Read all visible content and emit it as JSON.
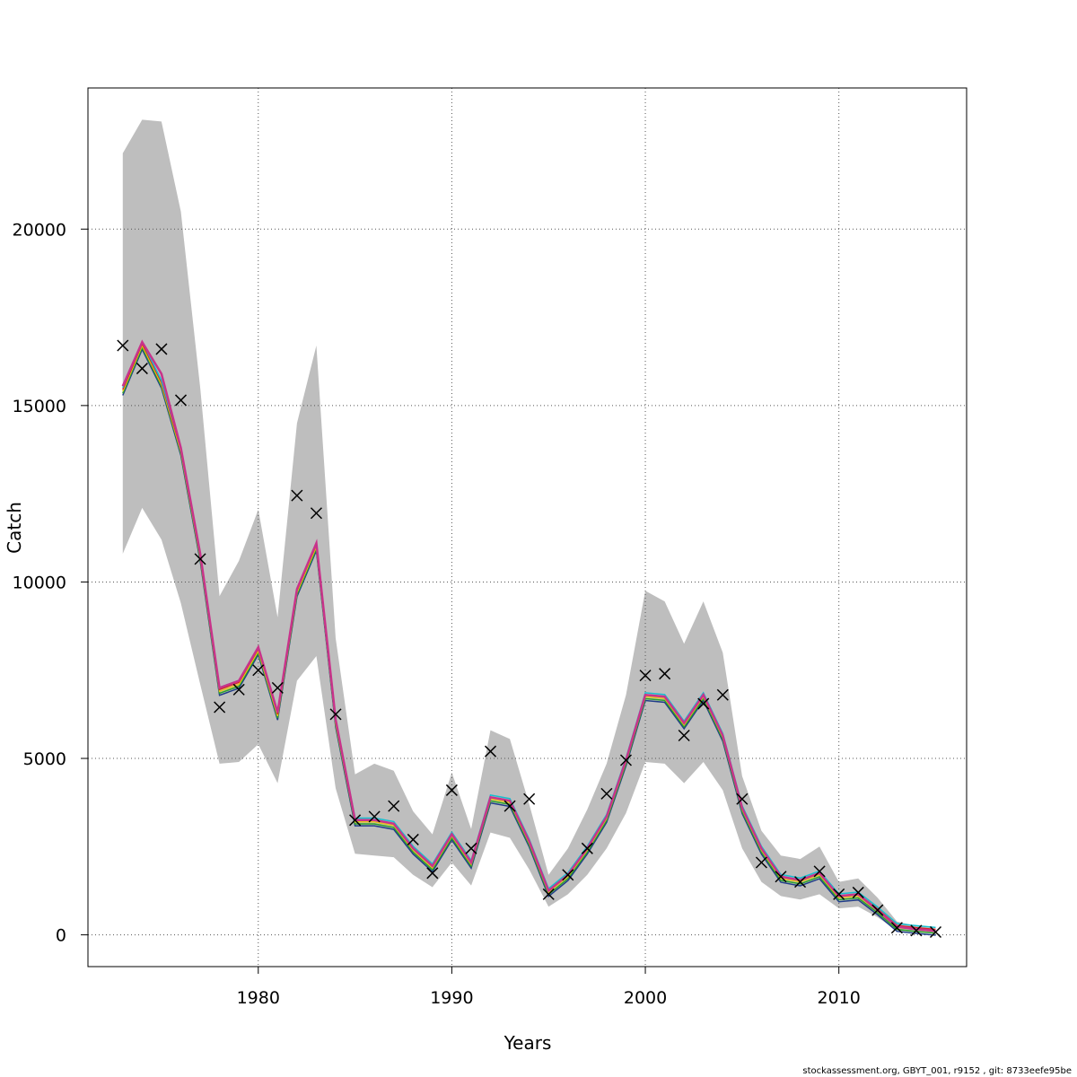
{
  "chart_data": {
    "type": "line",
    "xlabel": "Years",
    "ylabel": "Catch",
    "xlim": [
      1971.2,
      2016.6
    ],
    "ylim": [
      -900,
      24000
    ],
    "x_ticks": [
      1980,
      1990,
      2000,
      2010
    ],
    "x_tick_labels": [
      "1980",
      "1990",
      "2000",
      "2010"
    ],
    "y_ticks": [
      0,
      5000,
      10000,
      15000,
      20000
    ],
    "y_tick_labels": [
      "0",
      "5000",
      "10000",
      "15000",
      "20000"
    ],
    "grid": true,
    "years": [
      1973,
      1974,
      1975,
      1976,
      1977,
      1978,
      1979,
      1980,
      1981,
      1982,
      1983,
      1984,
      1985,
      1986,
      1987,
      1988,
      1989,
      1990,
      1991,
      1992,
      1993,
      1994,
      1995,
      1996,
      1997,
      1998,
      1999,
      2000,
      2001,
      2002,
      2003,
      2004,
      2005,
      2006,
      2007,
      2008,
      2009,
      2010,
      2011,
      2012,
      2013,
      2014,
      2015
    ],
    "band_upper": [
      22150,
      23100,
      23050,
      20500,
      15500,
      9600,
      10600,
      12050,
      9000,
      14500,
      16700,
      8400,
      4550,
      4850,
      4650,
      3500,
      2850,
      4600,
      3000,
      5800,
      5550,
      3700,
      1700,
      2450,
      3550,
      4850,
      6800,
      9750,
      9450,
      8250,
      9450,
      8000,
      4500,
      2950,
      2250,
      2150,
      2500,
      1500,
      1600,
      1050,
      380,
      250,
      180
    ],
    "band_lower": [
      10800,
      12100,
      11200,
      9400,
      7100,
      4850,
      4900,
      5400,
      4300,
      7200,
      7900,
      4150,
      2300,
      2250,
      2200,
      1700,
      1350,
      2050,
      1400,
      2900,
      2750,
      1850,
      800,
      1150,
      1700,
      2450,
      3450,
      4900,
      4850,
      4300,
      4900,
      4100,
      2450,
      1500,
      1100,
      1000,
      1150,
      750,
      800,
      500,
      120,
      70,
      40
    ],
    "catch_est_main": [
      15550,
      16800,
      15900,
      13800,
      10800,
      7000,
      7200,
      8150,
      6300,
      9800,
      11100,
      6100,
      3250,
      3250,
      3150,
      2450,
      1950,
      2850,
      2050,
      3900,
      3800,
      2650,
      1250,
      1700,
      2450,
      3350,
      4950,
      6800,
      6750,
      6000,
      6800,
      5650,
      3600,
      2450,
      1650,
      1550,
      1750,
      1100,
      1150,
      700,
      230,
      160,
      110
    ],
    "catch_est_variant": [
      15400,
      16700,
      15600,
      13700,
      10700,
      6900,
      7100,
      8050,
      6200,
      9700,
      11000,
      6000,
      3200,
      3200,
      3100,
      2400,
      1900,
      2800,
      2000,
      3850,
      3750,
      2600,
      1200,
      1650,
      2400,
      3300,
      4900,
      6750,
      6700,
      5950,
      6750,
      5600,
      3550,
      2400,
      1600,
      1500,
      1700,
      1050,
      1100,
      680,
      210,
      150,
      100
    ],
    "observed_catch": [
      16700,
      16050,
      16600,
      15150,
      10650,
      6450,
      6950,
      7500,
      7000,
      12450,
      11950,
      6250,
      3250,
      3350,
      3650,
      2700,
      1750,
      4100,
      2450,
      5200,
      3650,
      3850,
      1150,
      1700,
      2450,
      4000,
      4950,
      7350,
      7400,
      5650,
      6550,
      6800,
      3850,
      2050,
      1650,
      1500,
      1800,
      1150,
      1200,
      700,
      200,
      120,
      80
    ]
  },
  "footer_text": "stockassessment.org, GBYT_001, r9152 , git: 8733eefe95be",
  "colors": {
    "band": "#bebebe",
    "grid": "#555555",
    "estimate": "#c8338b",
    "variant_lines": [
      "#1f3c88",
      "#2ca02c",
      "#e6c619",
      "#d62728",
      "#17becf"
    ],
    "observed": "#000000"
  }
}
